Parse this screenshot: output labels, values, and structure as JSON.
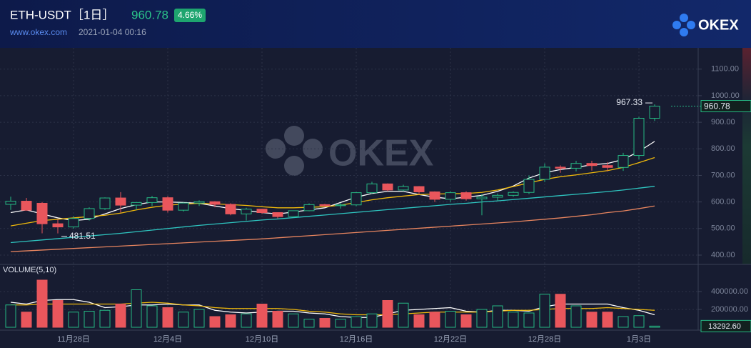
{
  "header": {
    "title": "ETH-USDT［1日］",
    "change": "4.66%",
    "site": "www.okex.com",
    "time": "2021-01-04 00:16",
    "logo": "OKEX"
  },
  "chart_data": [
    {
      "type": "candlestick",
      "categories": [
        null,
        null,
        null,
        null,
        "11月28日",
        null,
        null,
        null,
        null,
        null,
        "12月4日",
        null,
        null,
        null,
        null,
        null,
        "12月10日",
        null,
        null,
        null,
        null,
        null,
        "12月16日",
        null,
        null,
        null,
        null,
        null,
        "12月22日",
        null,
        null,
        null,
        null,
        null,
        "12月28日",
        null,
        null,
        null,
        null,
        null,
        "1月3日",
        null
      ],
      "ohlc": [
        [
          591,
          620,
          570,
          603
        ],
        [
          603,
          615,
          567,
          569
        ],
        [
          595,
          600,
          482,
          518
        ],
        [
          518,
          535,
          481.51,
          506
        ],
        [
          506,
          547,
          499,
          538
        ],
        [
          538,
          580,
          530,
          575
        ],
        [
          575,
          617,
          570,
          615
        ],
        [
          615,
          637,
          560,
          588
        ],
        [
          588,
          599,
          570,
          598
        ],
        [
          598,
          623,
          585,
          616
        ],
        [
          616,
          622,
          560,
          569
        ],
        [
          569,
          598,
          564,
          596
        ],
        [
          596,
          606,
          585,
          601
        ],
        [
          601,
          603,
          580,
          591
        ],
        [
          591,
          595,
          550,
          555
        ],
        [
          555,
          578,
          530,
          573
        ],
        [
          573,
          574,
          555,
          560
        ],
        [
          560,
          561,
          538,
          545
        ],
        [
          545,
          568,
          544,
          567
        ],
        [
          567,
          595,
          565,
          590
        ],
        [
          590,
          593,
          580,
          586
        ],
        [
          586,
          595,
          575,
          589
        ],
        [
          589,
          637,
          584,
          635
        ],
        [
          635,
          676,
          630,
          668
        ],
        [
          668,
          670,
          640,
          645
        ],
        [
          645,
          665,
          640,
          658
        ],
        [
          658,
          660,
          630,
          638
        ],
        [
          638,
          640,
          600,
          610
        ],
        [
          610,
          640,
          600,
          635
        ],
        [
          635,
          640,
          605,
          612
        ],
        [
          612,
          630,
          550,
          618
        ],
        [
          618,
          632,
          603,
          625
        ],
        [
          625,
          640,
          620,
          636
        ],
        [
          636,
          700,
          630,
          685
        ],
        [
          685,
          745,
          675,
          731
        ],
        [
          731,
          738,
          710,
          727
        ],
        [
          727,
          755,
          715,
          745
        ],
        [
          745,
          755,
          718,
          737
        ],
        [
          737,
          750,
          715,
          730
        ],
        [
          730,
          785,
          717,
          775
        ],
        [
          775,
          920,
          760,
          915
        ],
        [
          915,
          967.33,
          905,
          960.78
        ]
      ],
      "up_color": "#26b984",
      "down_color": "#e9565c",
      "series": [
        {
          "color": "#ffffff",
          "values": [
            560,
            570,
            555,
            540,
            530,
            535,
            555,
            575,
            590,
            600,
            600,
            598,
            595,
            585,
            575,
            568,
            560,
            555,
            562,
            570,
            578,
            598,
            618,
            632,
            640,
            640,
            628,
            618,
            612,
            618,
            625,
            640,
            660,
            690,
            710,
            722,
            730,
            740,
            745,
            760,
            790,
            828
          ]
        },
        {
          "color": "#f0b90b",
          "values": [
            510,
            520,
            530,
            535,
            540,
            545,
            550,
            558,
            570,
            580,
            588,
            592,
            595,
            593,
            590,
            587,
            582,
            578,
            578,
            580,
            582,
            588,
            598,
            608,
            616,
            622,
            628,
            630,
            631,
            632,
            636,
            645,
            658,
            672,
            685,
            695,
            702,
            710,
            718,
            730,
            748,
            767
          ]
        },
        {
          "color": "#2ec5c0",
          "values": [
            447,
            452,
            457,
            462,
            467,
            472,
            477,
            482,
            488,
            494,
            500,
            506,
            512,
            517,
            522,
            527,
            532,
            536,
            541,
            546,
            551,
            556,
            561,
            566,
            571,
            576,
            581,
            586,
            591,
            595,
            600,
            604,
            609,
            614,
            619,
            624,
            629,
            634,
            639,
            645,
            652,
            659
          ]
        },
        {
          "color": "#e8855f",
          "values": [
            413,
            416,
            419,
            422,
            425,
            428,
            431,
            434,
            437,
            440,
            443,
            446,
            449,
            452,
            455,
            458,
            461,
            465,
            469,
            473,
            477,
            481,
            485,
            489,
            493,
            497,
            501,
            505,
            509,
            513,
            517,
            521,
            525,
            530,
            535,
            540,
            546,
            552,
            560,
            566,
            575,
            585
          ]
        }
      ],
      "ylim": [
        365,
        1180
      ],
      "yticks": [
        {
          "value": 400,
          "label": "400.00"
        },
        {
          "value": 500,
          "label": "500.00"
        },
        {
          "value": 600,
          "label": "600.00"
        },
        {
          "value": 700,
          "label": "700.00"
        },
        {
          "value": 800,
          "label": "800.00"
        },
        {
          "value": 900,
          "label": "900.00"
        },
        {
          "value": 1000,
          "label": "1000.00"
        },
        {
          "value": 1100,
          "label": "1100.00"
        }
      ],
      "grid": true
    },
    {
      "type": "bar",
      "title": "VOLUME(5,10)",
      "values": [
        250000,
        170000,
        528000,
        300000,
        170000,
        180000,
        190000,
        260000,
        420000,
        240000,
        220000,
        170000,
        200000,
        120000,
        140000,
        150000,
        260000,
        180000,
        150000,
        90000,
        100000,
        90000,
        120000,
        150000,
        300000,
        270000,
        140000,
        170000,
        180000,
        140000,
        200000,
        240000,
        170000,
        160000,
        370000,
        370000,
        240000,
        170000,
        170000,
        120000,
        130000,
        13292.6
      ],
      "value_labels": [
        null,
        null,
        null,
        null,
        null,
        null,
        null,
        null,
        null,
        null,
        null,
        null,
        null,
        null,
        null,
        null,
        null,
        null,
        null,
        null,
        null,
        null,
        null,
        null,
        null,
        null,
        null,
        null,
        null,
        null,
        null,
        null,
        null,
        null,
        null,
        null,
        null,
        null,
        null,
        null,
        null,
        "13292.60"
      ],
      "series": [
        {
          "color": "#ffffff",
          "values": [
            280000,
            260000,
            300000,
            310000,
            310000,
            280000,
            220000,
            230000,
            250000,
            250000,
            260000,
            250000,
            250000,
            190000,
            170000,
            160000,
            170000,
            180000,
            180000,
            160000,
            150000,
            120000,
            110000,
            110000,
            150000,
            190000,
            200000,
            210000,
            220000,
            180000,
            170000,
            190000,
            190000,
            180000,
            230000,
            260000,
            260000,
            260000,
            260000,
            220000,
            190000,
            140000
          ]
        },
        {
          "color": "#f0b90b",
          "values": [
            250000,
            250000,
            260000,
            260000,
            260000,
            260000,
            260000,
            260000,
            270000,
            280000,
            270000,
            250000,
            240000,
            220000,
            210000,
            210000,
            210000,
            210000,
            200000,
            180000,
            170000,
            150000,
            140000,
            140000,
            140000,
            150000,
            160000,
            170000,
            170000,
            170000,
            170000,
            180000,
            190000,
            190000,
            200000,
            210000,
            210000,
            210000,
            220000,
            210000,
            200000,
            190000
          ]
        }
      ],
      "ylim": [
        0,
        688000
      ],
      "yticks": [
        {
          "value": 200000,
          "label": "200000.00"
        },
        {
          "value": 400000,
          "label": "400000.00"
        }
      ],
      "grid": true
    }
  ]
}
